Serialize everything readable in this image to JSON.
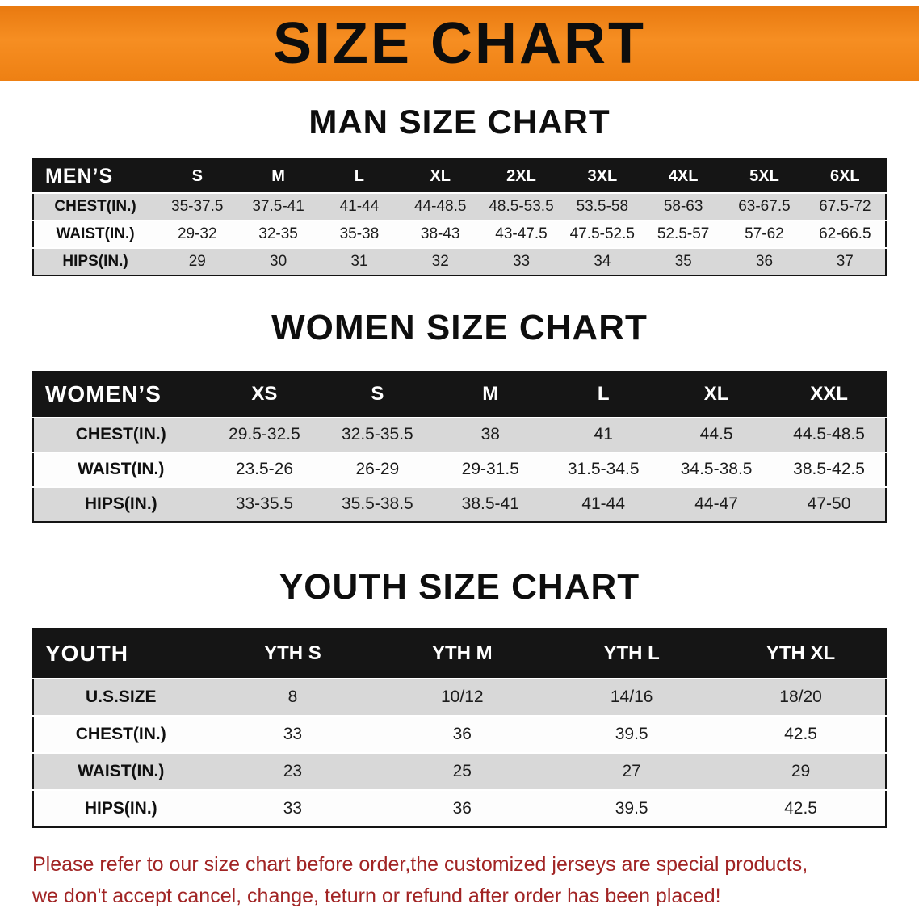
{
  "banner": {
    "title": "SIZE CHART"
  },
  "man_section": {
    "heading": "MAN SIZE CHART",
    "table": {
      "label": "MEN’S",
      "columns": [
        "S",
        "M",
        "L",
        "XL",
        "2XL",
        "3XL",
        "4XL",
        "5XL",
        "6XL"
      ],
      "rows": [
        {
          "label": "CHEST(IN.)",
          "values": [
            "35-37.5",
            "37.5-41",
            "41-44",
            "44-48.5",
            "48.5-53.5",
            "53.5-58",
            "58-63",
            "63-67.5",
            "67.5-72"
          ]
        },
        {
          "label": "WAIST(IN.)",
          "values": [
            "29-32",
            "32-35",
            "35-38",
            "38-43",
            "43-47.5",
            "47.5-52.5",
            "52.5-57",
            "57-62",
            "62-66.5"
          ]
        },
        {
          "label": "HIPS(IN.)",
          "values": [
            "29",
            "30",
            "31",
            "32",
            "33",
            "34",
            "35",
            "36",
            "37"
          ]
        }
      ]
    }
  },
  "women_section": {
    "heading": "WOMEN SIZE CHART",
    "table": {
      "label": "WOMEN’S",
      "columns": [
        "XS",
        "S",
        "M",
        "L",
        "XL",
        "XXL"
      ],
      "rows": [
        {
          "label": "CHEST(IN.)",
          "values": [
            "29.5-32.5",
            "32.5-35.5",
            "38",
            "41",
            "44.5",
            "44.5-48.5"
          ]
        },
        {
          "label": "WAIST(IN.)",
          "values": [
            "23.5-26",
            "26-29",
            "29-31.5",
            "31.5-34.5",
            "34.5-38.5",
            "38.5-42.5"
          ]
        },
        {
          "label": "HIPS(IN.)",
          "values": [
            "33-35.5",
            "35.5-38.5",
            "38.5-41",
            "41-44",
            "44-47",
            "47-50"
          ]
        }
      ]
    }
  },
  "youth_section": {
    "heading": "YOUTH SIZE CHART",
    "table": {
      "label": "YOUTH",
      "columns": [
        "YTH S",
        "YTH M",
        "YTH L",
        "YTH XL"
      ],
      "rows": [
        {
          "label": "U.S.SIZE",
          "values": [
            "8",
            "10/12",
            "14/16",
            "18/20"
          ]
        },
        {
          "label": "CHEST(IN.)",
          "values": [
            "33",
            "36",
            "39.5",
            "42.5"
          ]
        },
        {
          "label": "WAIST(IN.)",
          "values": [
            "23",
            "25",
            "27",
            "29"
          ]
        },
        {
          "label": "HIPS(IN.)",
          "values": [
            "33",
            "36",
            "39.5",
            "42.5"
          ]
        }
      ]
    }
  },
  "footer": {
    "line1": "Please refer to our size chart before order,the customized jerseys are special products,",
    "line2": "we don't accept cancel, change, teturn or refund after order has been placed!"
  },
  "colors": {
    "banner_bg": "#F08218",
    "table_header_bg": "#151515",
    "row_shade": "#D8D8D8",
    "notice_text": "#A12424"
  }
}
